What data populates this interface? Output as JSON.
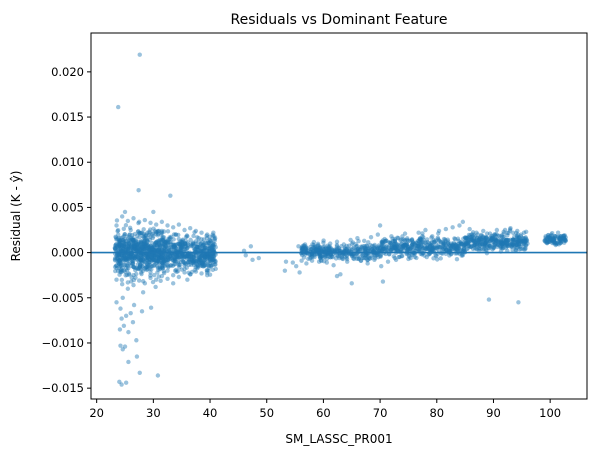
{
  "chart_data": {
    "type": "scatter",
    "title": "Residuals vs Dominant Feature",
    "xlabel": "SM_LASSC_PR001",
    "ylabel": "Residual (K - ŷ)",
    "xlim": [
      19.0,
      106.5
    ],
    "ylim": [
      -0.0162,
      0.0243
    ],
    "x_ticks": [
      20,
      30,
      40,
      50,
      60,
      70,
      80,
      90,
      100
    ],
    "y_ticks": [
      -0.015,
      -0.01,
      -0.005,
      0.0,
      0.005,
      0.01,
      0.015,
      0.02
    ],
    "x_tick_labels": [
      "20",
      "30",
      "40",
      "50",
      "60",
      "70",
      "80",
      "90",
      "100"
    ],
    "y_tick_labels": [
      "−0.015",
      "−0.010",
      "−0.005",
      "0.000",
      "0.005",
      "0.010",
      "0.015",
      "0.020"
    ],
    "reference_line": {
      "y": 0,
      "color": "#1f77b4"
    },
    "marker_color": "#1f77b4",
    "grid": false,
    "legend": "none",
    "points": [
      [
        23.8,
        0.0161
      ],
      [
        27.6,
        0.0219
      ],
      [
        27.4,
        0.0069
      ],
      [
        33.0,
        0.0063
      ],
      [
        30.0,
        0.0045
      ],
      [
        25.0,
        0.0045
      ],
      [
        24.0,
        -0.0143
      ],
      [
        24.4,
        -0.0146
      ],
      [
        25.2,
        -0.0144
      ],
      [
        27.6,
        -0.0133
      ],
      [
        30.8,
        -0.0136
      ],
      [
        24.2,
        -0.0103
      ],
      [
        24.6,
        -0.0107
      ],
      [
        25.0,
        -0.0104
      ],
      [
        25.6,
        -0.0121
      ],
      [
        27.1,
        -0.0115
      ],
      [
        27.0,
        -0.0097
      ],
      [
        24.1,
        -0.0085
      ],
      [
        24.8,
        -0.0081
      ],
      [
        25.6,
        -0.0088
      ],
      [
        26.4,
        -0.0077
      ],
      [
        24.4,
        -0.0073
      ],
      [
        23.5,
        -0.0055
      ],
      [
        24.2,
        -0.0062
      ],
      [
        25.2,
        -0.007
      ],
      [
        26.0,
        -0.0067
      ],
      [
        28.0,
        -0.0065
      ],
      [
        29.6,
        -0.0061
      ],
      [
        26.6,
        -0.0058
      ],
      [
        24.6,
        -0.005
      ],
      [
        28.2,
        -0.0044
      ],
      [
        25.5,
        -0.004
      ],
      [
        30.4,
        -0.0038
      ],
      [
        33.5,
        -0.0034
      ],
      [
        36.0,
        -0.003
      ],
      [
        39.5,
        -0.0025
      ],
      [
        41.0,
        -0.0018
      ],
      [
        23.5,
        0.003
      ],
      [
        24.5,
        0.004
      ],
      [
        25.5,
        0.0035
      ],
      [
        26.5,
        0.0038
      ],
      [
        27.5,
        0.0034
      ],
      [
        28.5,
        0.0036
      ],
      [
        29.5,
        0.0033
      ],
      [
        30.5,
        0.0031
      ],
      [
        31.5,
        0.0034
      ],
      [
        32.5,
        0.003
      ],
      [
        33.5,
        0.0028
      ],
      [
        34.5,
        0.0031
      ],
      [
        35.5,
        0.0025
      ],
      [
        36.5,
        0.0027
      ],
      [
        37.5,
        0.0024
      ],
      [
        38.5,
        0.0022
      ],
      [
        39.5,
        0.002
      ],
      [
        40.5,
        0.0018
      ],
      [
        23.5,
        -0.003
      ],
      [
        24.5,
        -0.0035
      ],
      [
        25.5,
        -0.0033
      ],
      [
        26.5,
        -0.0036
      ],
      [
        27.5,
        -0.0031
      ],
      [
        28.5,
        -0.0034
      ],
      [
        29.5,
        -0.0028
      ],
      [
        30.5,
        -0.003
      ],
      [
        31.5,
        -0.0026
      ],
      [
        32.5,
        -0.0029
      ],
      [
        33.5,
        -0.0025
      ],
      [
        34.5,
        -0.0027
      ],
      [
        35.5,
        -0.0022
      ],
      [
        36.5,
        -0.0024
      ],
      [
        37.5,
        -0.0021
      ],
      [
        38.5,
        -0.0023
      ],
      [
        39.5,
        -0.002
      ],
      [
        40.5,
        -0.0019
      ],
      [
        23.8,
        0.002
      ],
      [
        24.2,
        -0.002
      ],
      [
        25.0,
        0.0015
      ],
      [
        25.5,
        -0.0015
      ],
      [
        26.0,
        0.0025
      ],
      [
        26.5,
        -0.0025
      ],
      [
        27.0,
        0.001
      ],
      [
        27.5,
        -0.001
      ],
      [
        28.0,
        0.0022
      ],
      [
        28.5,
        -0.0018
      ],
      [
        29.0,
        0.0012
      ],
      [
        29.5,
        -0.0022
      ],
      [
        30.0,
        0.0018
      ],
      [
        30.5,
        -0.0012
      ],
      [
        31.0,
        0.0024
      ],
      [
        31.5,
        -0.0016
      ],
      [
        32.0,
        0.0008
      ],
      [
        32.5,
        -0.002
      ],
      [
        33.0,
        0.0016
      ],
      [
        33.5,
        -0.0008
      ],
      [
        34.0,
        0.002
      ],
      [
        34.5,
        -0.0014
      ],
      [
        35.0,
        0.0012
      ],
      [
        35.5,
        -0.0018
      ],
      [
        36.0,
        0.0018
      ],
      [
        36.5,
        -0.001
      ],
      [
        37.0,
        0.001
      ],
      [
        37.5,
        -0.0016
      ],
      [
        38.0,
        0.0016
      ],
      [
        38.5,
        -0.0012
      ],
      [
        39.0,
        0.0008
      ],
      [
        39.5,
        -0.0014
      ],
      [
        40.0,
        0.0014
      ],
      [
        40.5,
        -0.0008
      ],
      [
        41.0,
        0.0006
      ],
      [
        24.0,
        0.0005
      ],
      [
        25.0,
        -0.0005
      ],
      [
        26.0,
        0.0003
      ],
      [
        27.0,
        -0.0003
      ],
      [
        28.0,
        0.0006
      ],
      [
        29.0,
        -0.0006
      ],
      [
        30.0,
        0.0002
      ],
      [
        31.0,
        -0.0002
      ],
      [
        32.0,
        0.0004
      ],
      [
        33.0,
        -0.0004
      ],
      [
        34.0,
        0.0001
      ],
      [
        35.0,
        -0.0001
      ],
      [
        36.0,
        0.0005
      ],
      [
        37.0,
        -0.0005
      ],
      [
        38.0,
        0.0003
      ],
      [
        39.0,
        -0.0003
      ],
      [
        40.0,
        0.0002
      ],
      [
        41.0,
        -0.0002
      ],
      [
        46.0,
        0.0002
      ],
      [
        46.3,
        -0.0003
      ],
      [
        47.2,
        0.0007
      ],
      [
        47.5,
        -0.0008
      ],
      [
        48.6,
        -0.0006
      ],
      [
        53.4,
        -0.001
      ],
      [
        53.2,
        -0.002
      ],
      [
        54.6,
        -0.0011
      ],
      [
        55.2,
        -0.0015
      ],
      [
        55.8,
        -0.0022
      ],
      [
        55.6,
        0.0007
      ],
      [
        56.2,
        0.0004
      ],
      [
        57.0,
        -0.0012
      ],
      [
        57.3,
        0.0002
      ],
      [
        58.0,
        -0.0009
      ],
      [
        58.6,
        0.0006
      ],
      [
        59.4,
        -0.0005
      ],
      [
        60.0,
        0.0011
      ],
      [
        60.6,
        -0.0011
      ],
      [
        61.2,
        0.001
      ],
      [
        61.8,
        -0.0014
      ],
      [
        62.4,
        0.0012
      ],
      [
        63.0,
        -0.0024
      ],
      [
        63.6,
        0.0009
      ],
      [
        64.2,
        -0.001
      ],
      [
        64.8,
        0.0014
      ],
      [
        65.4,
        -0.0007
      ],
      [
        66.0,
        0.0016
      ],
      [
        66.6,
        -0.0009
      ],
      [
        67.2,
        0.0013
      ],
      [
        67.8,
        -0.0012
      ],
      [
        68.4,
        0.0017
      ],
      [
        69.0,
        -0.0008
      ],
      [
        69.6,
        0.002
      ],
      [
        70.2,
        -0.0015
      ],
      [
        70.0,
        0.003
      ],
      [
        70.8,
        0.0015
      ],
      [
        71.4,
        -0.001
      ],
      [
        72.0,
        0.0018
      ],
      [
        72.6,
        -0.0006
      ],
      [
        73.2,
        0.0016
      ],
      [
        73.8,
        -0.0004
      ],
      [
        74.4,
        0.0021
      ],
      [
        75.0,
        -0.0007
      ],
      [
        75.6,
        0.0014
      ],
      [
        76.2,
        0.0002
      ],
      [
        76.8,
        0.0022
      ],
      [
        77.4,
        -0.0002
      ],
      [
        78.0,
        0.0025
      ],
      [
        78.6,
        0.0004
      ],
      [
        79.2,
        0.0018
      ],
      [
        79.8,
        -0.0003
      ],
      [
        80.4,
        0.0024
      ],
      [
        81.0,
        0.0006
      ],
      [
        81.6,
        0.0026
      ],
      [
        82.2,
        0.0002
      ],
      [
        82.8,
        0.0028
      ],
      [
        83.4,
        0.0008
      ],
      [
        84.0,
        0.003
      ],
      [
        84.6,
        0.0034
      ],
      [
        85.2,
        0.001
      ],
      [
        85.8,
        0.0026
      ],
      [
        86.4,
        0.0004
      ],
      [
        87.0,
        0.0022
      ],
      [
        87.6,
        0.0008
      ],
      [
        88.2,
        0.0024
      ],
      [
        88.8,
        0.0012
      ],
      [
        89.4,
        0.0021
      ],
      [
        90.0,
        0.0006
      ],
      [
        90.6,
        0.0025
      ],
      [
        91.2,
        0.0012
      ],
      [
        91.8,
        0.0023
      ],
      [
        92.4,
        0.001
      ],
      [
        93.0,
        0.0027
      ],
      [
        93.6,
        0.0008
      ],
      [
        94.2,
        0.0024
      ],
      [
        94.8,
        0.0014
      ],
      [
        95.4,
        0.0022
      ],
      [
        96.0,
        0.001
      ],
      [
        99.2,
        0.0018
      ],
      [
        99.6,
        0.0012
      ],
      [
        100.2,
        0.002
      ],
      [
        100.8,
        0.001
      ],
      [
        101.4,
        0.0022
      ],
      [
        102.0,
        0.0012
      ],
      [
        102.6,
        0.0019
      ],
      [
        89.2,
        -0.0052
      ],
      [
        94.4,
        -0.0055
      ],
      [
        65.0,
        -0.0034
      ],
      [
        70.5,
        -0.0032
      ],
      [
        62.4,
        -0.0026
      ]
    ],
    "dense_bands": [
      {
        "x": [
          23.2,
          41.0
        ],
        "y_center": 0.0,
        "y_spread": 0.0016,
        "count": 900
      },
      {
        "x": [
          23.5,
          32.0
        ],
        "y_center": 0.0,
        "y_spread": 0.0026,
        "count": 250
      },
      {
        "x": [
          56.0,
          70.0
        ],
        "y_center": 0.0001,
        "y_spread": 0.0007,
        "count": 350
      },
      {
        "x": [
          70.0,
          85.0
        ],
        "y_center": 0.0006,
        "y_spread": 0.0009,
        "count": 400
      },
      {
        "x": [
          85.0,
          96.0
        ],
        "y_center": 0.0012,
        "y_spread": 0.0008,
        "count": 320
      },
      {
        "x": [
          99.0,
          103.0
        ],
        "y_center": 0.0015,
        "y_spread": 0.0005,
        "count": 90
      }
    ]
  }
}
